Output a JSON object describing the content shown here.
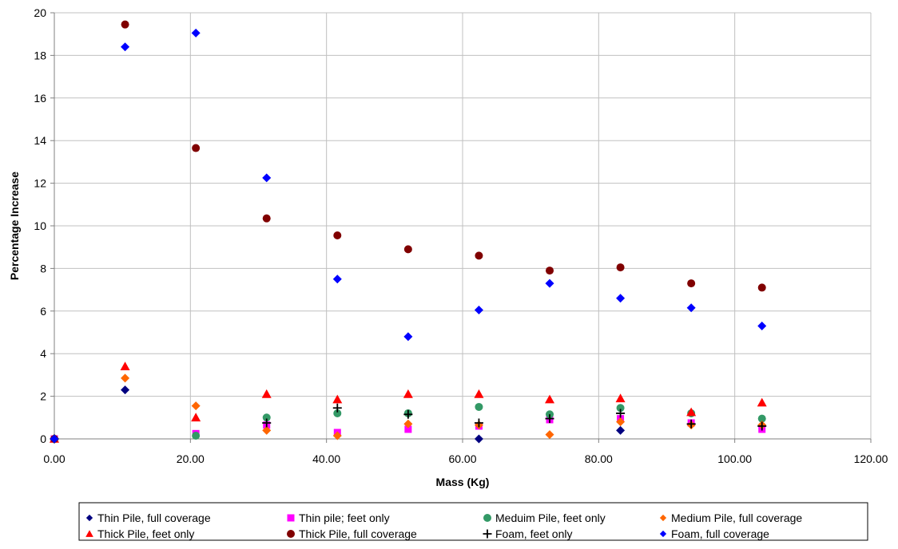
{
  "chart_data": {
    "type": "scatter",
    "title": "",
    "xlabel": "Mass (Kg)",
    "ylabel": "Percentage Increase",
    "xlim": [
      0,
      120
    ],
    "ylim": [
      0,
      20
    ],
    "x_ticks": [
      "0.00",
      "20.00",
      "40.00",
      "60.00",
      "80.00",
      "100.00",
      "120.00"
    ],
    "y_ticks": [
      "0",
      "2",
      "4",
      "6",
      "8",
      "10",
      "12",
      "14",
      "16",
      "18",
      "20"
    ],
    "grid": "vertical and horizontal major gridlines",
    "legend_position": "bottom",
    "series": [
      {
        "name": "Thin Pile, full coverage",
        "marker": "diamond",
        "color": "#000080",
        "points": [
          [
            0,
            0
          ],
          [
            10.4,
            2.3
          ],
          [
            62.4,
            0.0
          ],
          [
            83.2,
            0.4
          ]
        ]
      },
      {
        "name": "Thin pile; feet only",
        "marker": "square",
        "color": "#FF00FF",
        "points": [
          [
            0,
            0
          ],
          [
            20.8,
            0.25
          ],
          [
            31.2,
            0.65
          ],
          [
            41.6,
            0.3
          ],
          [
            52.0,
            0.45
          ],
          [
            62.4,
            0.6
          ],
          [
            72.8,
            0.9
          ],
          [
            83.2,
            0.95
          ],
          [
            93.6,
            0.75
          ],
          [
            104.0,
            0.45
          ]
        ]
      },
      {
        "name": "Meduim Pile, feet only",
        "marker": "circle",
        "color": "#339966",
        "points": [
          [
            0,
            0
          ],
          [
            20.8,
            0.15
          ],
          [
            31.2,
            1.0
          ],
          [
            41.6,
            1.2
          ],
          [
            52.0,
            1.2
          ],
          [
            62.4,
            1.5
          ],
          [
            72.8,
            1.15
          ],
          [
            83.2,
            1.45
          ],
          [
            93.6,
            1.2
          ],
          [
            104.0,
            0.95
          ]
        ]
      },
      {
        "name": "Medium Pile, full coverage",
        "marker": "diamond",
        "color": "#FF6600",
        "points": [
          [
            0,
            0
          ],
          [
            10.4,
            2.85
          ],
          [
            20.8,
            1.55
          ],
          [
            31.2,
            0.4
          ],
          [
            41.6,
            0.15
          ],
          [
            52.0,
            0.7
          ],
          [
            62.4,
            0.65
          ],
          [
            72.8,
            0.2
          ],
          [
            83.2,
            0.8
          ],
          [
            93.6,
            0.65
          ],
          [
            104.0,
            0.65
          ]
        ]
      },
      {
        "name": "Thick Pile, feet only",
        "marker": "triangle",
        "color": "#FF0000",
        "points": [
          [
            0,
            0
          ],
          [
            10.4,
            3.4
          ],
          [
            20.8,
            1.0
          ],
          [
            31.2,
            2.1
          ],
          [
            41.6,
            1.85
          ],
          [
            52.0,
            2.1
          ],
          [
            62.4,
            2.1
          ],
          [
            72.8,
            1.85
          ],
          [
            83.2,
            1.9
          ],
          [
            93.6,
            1.25
          ],
          [
            104.0,
            1.7
          ]
        ]
      },
      {
        "name": "Thick Pile, full coverage",
        "marker": "circle",
        "color": "#800000",
        "points": [
          [
            0,
            0
          ],
          [
            10.4,
            19.45
          ],
          [
            20.8,
            13.65
          ],
          [
            31.2,
            10.35
          ],
          [
            41.6,
            9.55
          ],
          [
            52.0,
            8.9
          ],
          [
            62.4,
            8.6
          ],
          [
            72.8,
            7.9
          ],
          [
            83.2,
            8.05
          ],
          [
            93.6,
            7.3
          ],
          [
            104.0,
            7.1
          ]
        ]
      },
      {
        "name": "Foam, feet only",
        "marker": "plus",
        "color": "#000000",
        "points": [
          [
            0,
            0
          ],
          [
            31.2,
            0.75
          ],
          [
            41.6,
            1.45
          ],
          [
            52.0,
            1.15
          ],
          [
            62.4,
            0.75
          ],
          [
            72.8,
            0.95
          ],
          [
            83.2,
            1.2
          ],
          [
            93.6,
            0.7
          ],
          [
            104.0,
            0.6
          ]
        ]
      },
      {
        "name": "Foam, full coverage",
        "marker": "diamond",
        "color": "#0000FF",
        "points": [
          [
            0,
            0
          ],
          [
            10.4,
            18.4
          ],
          [
            20.8,
            19.05
          ],
          [
            31.2,
            12.25
          ],
          [
            41.6,
            7.5
          ],
          [
            52.0,
            4.8
          ],
          [
            62.4,
            6.05
          ],
          [
            72.8,
            7.3
          ],
          [
            83.2,
            6.6
          ],
          [
            93.6,
            6.15
          ],
          [
            104.0,
            5.3
          ]
        ]
      }
    ]
  }
}
